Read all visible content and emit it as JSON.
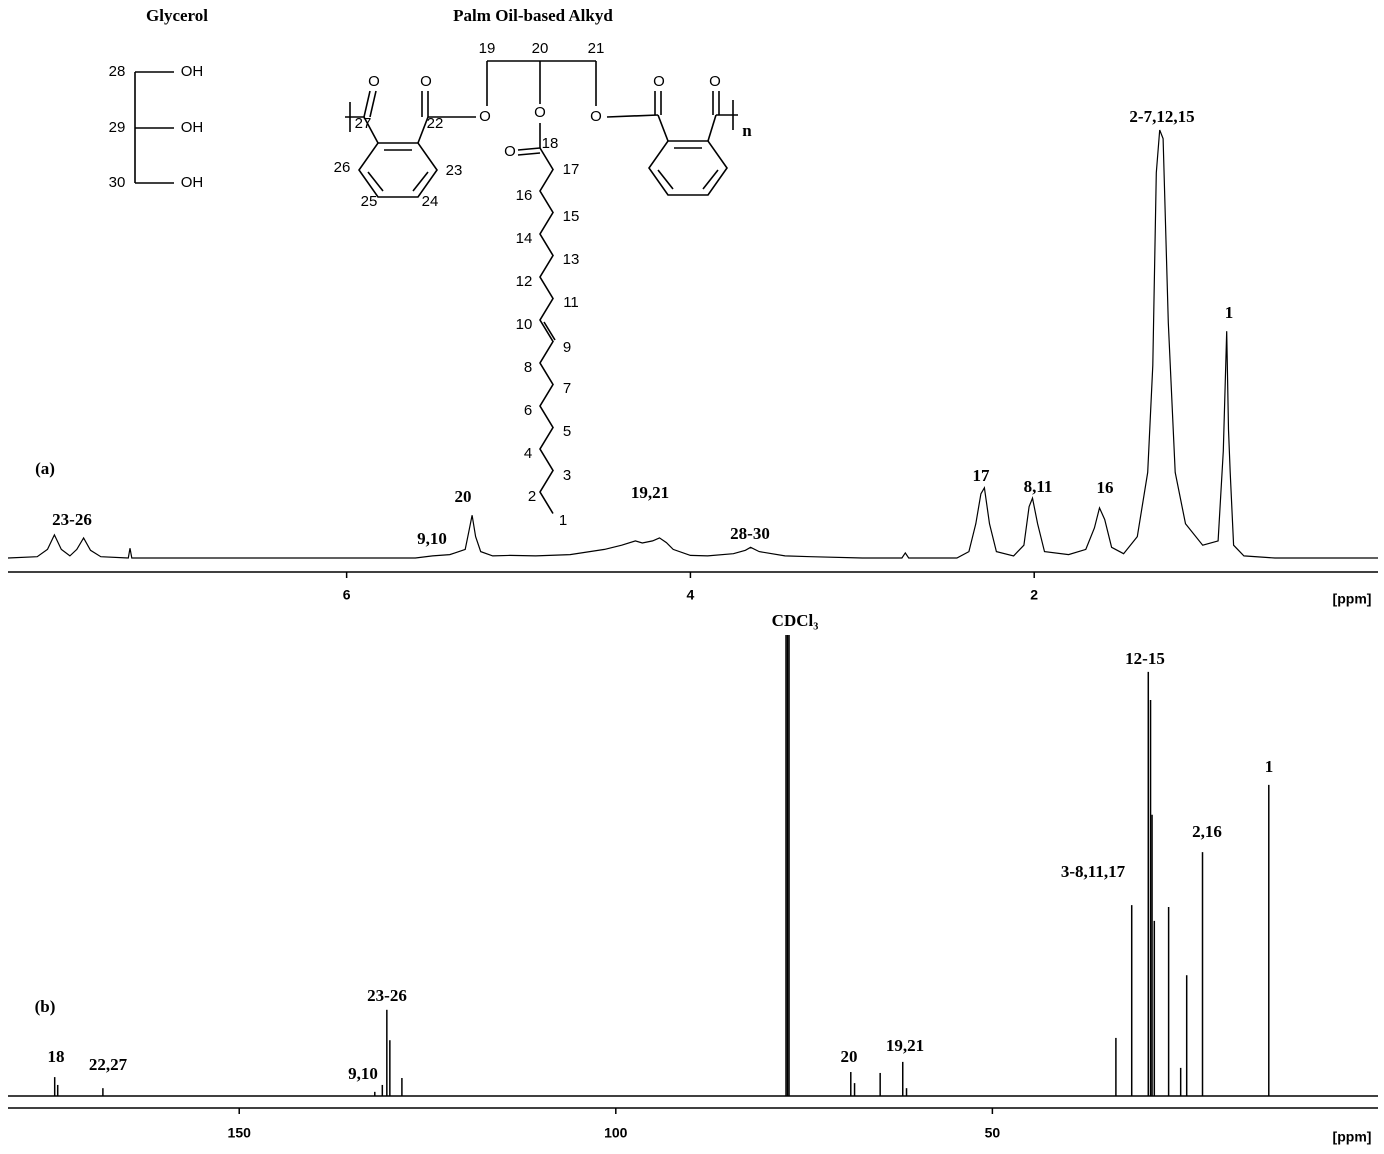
{
  "chart_data": [
    {
      "type": "line",
      "panel_label": "(a)",
      "xlabel": "[ppm]",
      "xlim": [
        7.97,
        0.0
      ],
      "ylim": [
        0,
        100
      ],
      "xticks": [
        6,
        4,
        2
      ],
      "color": "#000000",
      "x": [
        7.97,
        7.8,
        7.74,
        7.7,
        7.66,
        7.61,
        7.57,
        7.53,
        7.49,
        7.43,
        7.27,
        7.26,
        7.25,
        5.6,
        5.5,
        5.4,
        5.37,
        5.31,
        5.29,
        5.27,
        5.25,
        5.22,
        5.15,
        5.05,
        4.9,
        4.7,
        4.5,
        4.4,
        4.32,
        4.28,
        4.22,
        4.18,
        4.14,
        4.1,
        4.0,
        3.9,
        3.75,
        3.68,
        3.65,
        3.6,
        3.45,
        3.3,
        3.0,
        2.77,
        2.75,
        2.73,
        2.45,
        2.38,
        2.34,
        2.31,
        2.29,
        2.26,
        2.22,
        2.12,
        2.06,
        2.03,
        2.01,
        1.98,
        1.94,
        1.8,
        1.7,
        1.65,
        1.62,
        1.59,
        1.55,
        1.48,
        1.4,
        1.34,
        1.31,
        1.29,
        1.27,
        1.25,
        1.22,
        1.18,
        1.12,
        1.02,
        0.93,
        0.9,
        0.88,
        0.87,
        0.86,
        0.84,
        0.78,
        0.6,
        0.0
      ],
      "values": [
        0,
        0.3,
        2,
        5.4,
        2,
        0.5,
        2,
        4.7,
        1.8,
        0.3,
        0,
        2.3,
        0,
        0,
        0.5,
        0.8,
        1.2,
        2,
        6,
        10,
        5,
        1.5,
        0.5,
        0.6,
        0.5,
        0.8,
        2,
        3,
        4,
        3.5,
        4,
        4.7,
        3.6,
        2,
        0.6,
        0.5,
        1,
        1.8,
        2.5,
        1.5,
        0.5,
        0.3,
        0,
        0,
        1.2,
        0,
        0,
        1.5,
        8,
        15,
        16.4,
        8,
        1.5,
        0.5,
        3,
        12,
        14,
        8,
        1.5,
        0.8,
        2,
        7,
        11.7,
        9,
        2.5,
        1,
        5,
        20,
        45,
        90,
        100,
        98,
        55,
        20,
        8,
        3,
        4,
        25,
        53,
        30,
        20,
        3,
        0.5,
        0,
        0
      ],
      "annotations": [
        "23-26",
        "9,10",
        "20",
        "19,21",
        "28-30",
        "17",
        "8,11",
        "16",
        "2-7,12,15",
        "1"
      ]
    },
    {
      "type": "stem",
      "panel_label": "(b)",
      "xlabel": "[ppm]",
      "xlim": [
        180.7,
        -1.2
      ],
      "ylim": [
        0,
        100
      ],
      "xticks": [
        150,
        100,
        50
      ],
      "color": "#000000",
      "x": [
        174.5,
        174.1,
        168.1,
        132.0,
        131.0,
        130.4,
        130.0,
        128.4,
        77.4,
        77.2,
        77.0,
        68.8,
        68.3,
        64.9,
        61.9,
        61.4,
        33.6,
        31.5,
        29.3,
        29.0,
        28.8,
        28.5,
        26.6,
        25.0,
        24.2,
        22.1,
        13.3
      ],
      "values": [
        4.1,
        2.4,
        1.7,
        0.9,
        2.4,
        18.7,
        12.1,
        3.9,
        100,
        100,
        100,
        5.2,
        2.8,
        5,
        7.4,
        1.7,
        12.6,
        41.4,
        92,
        85.9,
        61,
        38,
        41,
        6.1,
        26.2,
        52.9,
        67.5
      ],
      "annotations": [
        "18",
        "22,27",
        "9,10",
        "23-26",
        "CDCl₃",
        "20",
        "19,21",
        "3-8,11,17",
        "12-15",
        "2,16",
        "1"
      ]
    }
  ],
  "structures": {
    "glycerol": {
      "title": "Glycerol",
      "atoms": [
        "28",
        "29",
        "30"
      ],
      "groups": [
        "OH",
        "OH",
        "OH"
      ]
    },
    "alkyd": {
      "title": "Palm Oil-based Alkyd",
      "atoms": [
        "1",
        "2",
        "3",
        "4",
        "5",
        "6",
        "7",
        "8",
        "9",
        "10",
        "11",
        "12",
        "13",
        "14",
        "15",
        "16",
        "17",
        "18",
        "19",
        "20",
        "21",
        "22",
        "23",
        "24",
        "25",
        "26",
        "27"
      ],
      "oxygens": [
        "O",
        "O",
        "O",
        "O",
        "O",
        "O",
        "O",
        "O"
      ],
      "repeat": "n"
    }
  }
}
